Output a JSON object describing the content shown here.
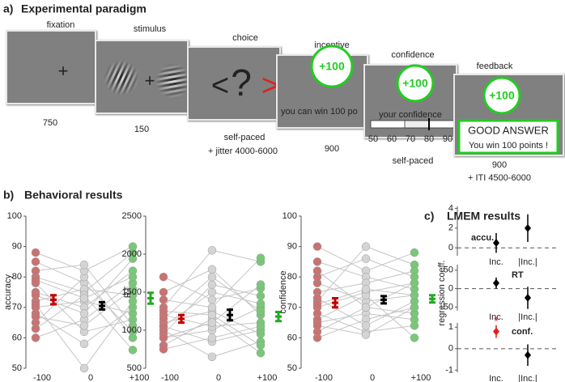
{
  "panel_a": {
    "label": "a)",
    "title": "Experimental paradigm",
    "screens": [
      {
        "name": "fixation",
        "timing": [
          "750"
        ],
        "content": [
          "+"
        ]
      },
      {
        "name": "stimulus",
        "timing": [
          "150"
        ],
        "content": [
          "+"
        ]
      },
      {
        "name": "choice",
        "timing": [
          "self-paced",
          "+ jitter 4000-6000"
        ],
        "content": [
          "<",
          "?",
          ">"
        ]
      },
      {
        "name": "incentive",
        "timing": [
          "900"
        ],
        "content": [
          "+100",
          "you can win 100 po"
        ]
      },
      {
        "name": "confidence",
        "timing": [
          "self-paced"
        ],
        "content": [
          "+100",
          "your confidence",
          "50",
          "60",
          "70",
          "80",
          "90"
        ]
      },
      {
        "name": "feedback",
        "timing": [
          "900",
          "+ ITI 4500-6000"
        ],
        "content": [
          "+100",
          "GOOD ANSWER",
          "You win 100 points !"
        ]
      }
    ]
  },
  "panel_b": {
    "label": "b)",
    "title": "Behavioral results"
  },
  "panel_c": {
    "label": "c)",
    "title": "LMEM results",
    "ylabel": "regression coeff."
  },
  "chart_data": [
    {
      "type": "strip",
      "ylabel": "accuracy",
      "categories": [
        "-100",
        "0",
        "+100"
      ],
      "colors": [
        "#c97272",
        "#d4d4d4",
        "#78c878"
      ],
      "mean_colors": [
        "#c00000",
        "#000000",
        "#22aa22"
      ],
      "subjects": [
        [
          85,
          78,
          62
        ],
        [
          80,
          75,
          88
        ],
        [
          70,
          72,
          68
        ],
        [
          65,
          80,
          60
        ],
        [
          75,
          70,
          82
        ],
        [
          60,
          66,
          78
        ],
        [
          78,
          62,
          66
        ],
        [
          72,
          76,
          74
        ],
        [
          88,
          82,
          90
        ],
        [
          68,
          58,
          70
        ],
        [
          82,
          84,
          64
        ],
        [
          74,
          68,
          86
        ],
        [
          63,
          74,
          56
        ],
        [
          79,
          73,
          80
        ],
        [
          71,
          50,
          72
        ],
        [
          67,
          64,
          76
        ]
      ],
      "means": [
        72.5,
        70.5,
        73
      ],
      "errors": [
        1.5,
        1.2,
        1.8
      ],
      "ylim": [
        50,
        100
      ],
      "yticks": [
        50,
        60,
        70,
        80,
        90,
        100
      ]
    },
    {
      "type": "strip",
      "ylabel": "RT",
      "categories": [
        "-100",
        "0",
        "+100"
      ],
      "colors": [
        "#c97272",
        "#d4d4d4",
        "#78c878"
      ],
      "mean_colors": [
        "#c00000",
        "#000000",
        "#22aa22"
      ],
      "subjects": [
        [
          1500,
          1800,
          1200
        ],
        [
          1100,
          1250,
          950
        ],
        [
          900,
          1000,
          1300
        ],
        [
          1300,
          2050,
          1900
        ],
        [
          1050,
          850,
          1000
        ],
        [
          1700,
          1400,
          1550
        ],
        [
          800,
          1150,
          700
        ],
        [
          1200,
          1050,
          1100
        ],
        [
          950,
          1600,
          1450
        ],
        [
          1000,
          650,
          850
        ],
        [
          1400,
          1300,
          1950
        ],
        [
          750,
          900,
          1050
        ],
        [
          1150,
          1700,
          1250
        ],
        [
          1250,
          1200,
          800
        ],
        [
          1050,
          1500,
          1350
        ],
        [
          900,
          1100,
          1600
        ]
      ],
      "means": [
        1150,
        1200,
        1180
      ],
      "errors": [
        50,
        70,
        60
      ],
      "ylim": [
        500,
        2500
      ],
      "yticks": [
        500,
        1000,
        1500,
        2000,
        2500
      ]
    },
    {
      "type": "strip",
      "ylabel": "confidence",
      "categories": [
        "-100",
        "0",
        "+100"
      ],
      "colors": [
        "#c97272",
        "#d4d4d4",
        "#78c878"
      ],
      "mean_colors": [
        "#c00000",
        "#000000",
        "#22aa22"
      ],
      "subjects": [
        [
          90,
          82,
          88
        ],
        [
          70,
          75,
          78
        ],
        [
          65,
          68,
          66
        ],
        [
          78,
          72,
          74
        ],
        [
          72,
          90,
          84
        ],
        [
          60,
          66,
          70
        ],
        [
          85,
          80,
          76
        ],
        [
          68,
          62,
          64
        ],
        [
          75,
          78,
          82
        ],
        [
          62,
          70,
          68
        ],
        [
          80,
          86,
          80
        ],
        [
          73,
          64,
          72
        ],
        [
          66,
          74,
          60
        ],
        [
          82,
          70,
          78
        ],
        [
          71,
          76,
          74
        ],
        [
          64,
          61,
          70
        ]
      ],
      "means": [
        71.5,
        72.5,
        72.8
      ],
      "errors": [
        1.5,
        1.2,
        1.2
      ],
      "ylim": [
        50,
        100
      ],
      "yticks": [
        50,
        60,
        70,
        80,
        90,
        100
      ]
    },
    {
      "type": "pointrange",
      "label": "accu.",
      "categories": [
        "Inc.",
        "|Inc.|"
      ],
      "values": [
        0.5,
        2.0
      ],
      "errors": [
        1.0,
        1.4
      ],
      "colors": [
        "#000000",
        "#000000"
      ],
      "ylim": [
        -0.8,
        4.2
      ],
      "yticks": [
        0,
        2,
        4
      ]
    },
    {
      "type": "pointrange",
      "label": "RT",
      "categories": [
        "Inc.",
        "|Inc.|"
      ],
      "values": [
        15,
        -25
      ],
      "errors": [
        15,
        30
      ],
      "colors": [
        "#000000",
        "#000000"
      ],
      "ylim": [
        -60,
        65
      ],
      "yticks": [
        -50,
        0,
        50
      ]
    },
    {
      "type": "pointrange",
      "label": "conf.",
      "categories": [
        "Inc.",
        "|Inc.|"
      ],
      "values": [
        0.8,
        -0.3
      ],
      "errors": [
        0.3,
        0.5
      ],
      "colors": [
        "#e02020",
        "#000000"
      ],
      "annotation": "*",
      "ylim": [
        -1.1,
        1.2
      ],
      "yticks": [
        -1,
        0,
        1
      ]
    }
  ]
}
